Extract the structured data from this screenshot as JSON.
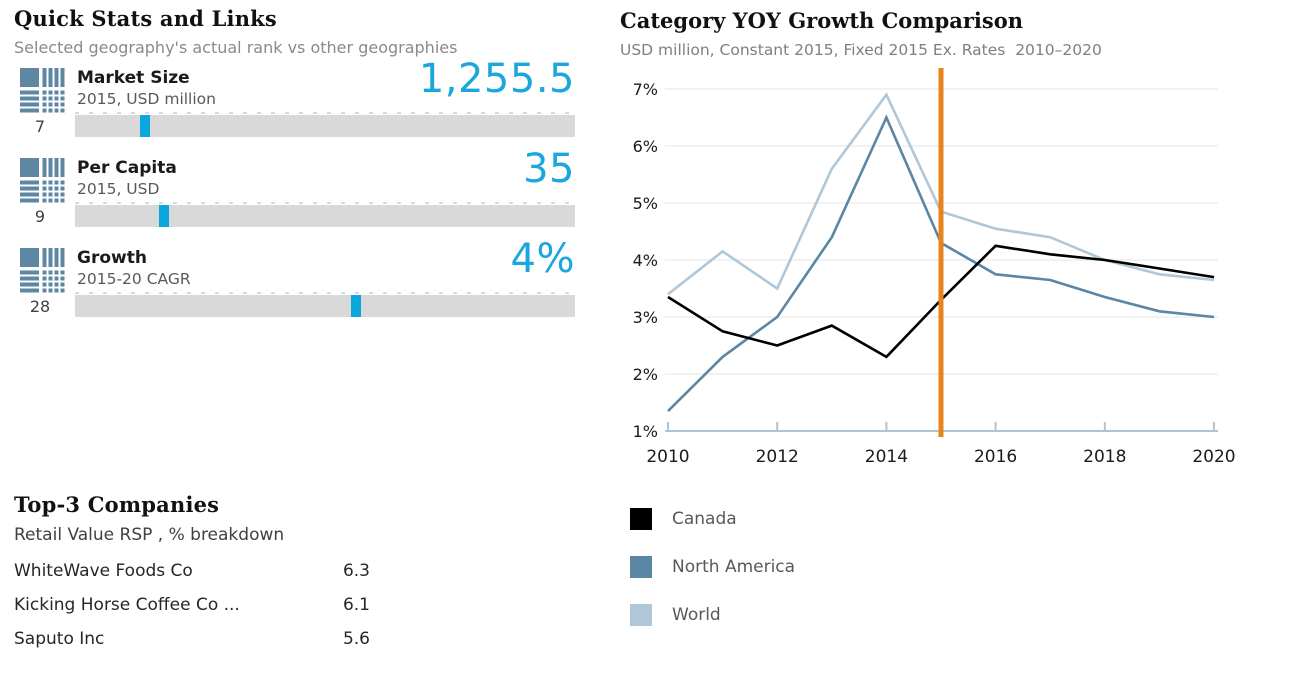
{
  "quick_stats": {
    "title": "Quick Stats and Links",
    "subtitle": "Selected geography's actual rank vs other geographies",
    "stats": [
      {
        "label": "Market Size",
        "sublabel": "2015, USD million",
        "value": "1,255.5",
        "rank": "7",
        "marker_pct": 13.9
      },
      {
        "label": "Per Capita",
        "sublabel": "2015, USD",
        "value": "35",
        "rank": "9",
        "marker_pct": 17.9
      },
      {
        "label": "Growth",
        "sublabel": "2015-20 CAGR",
        "value": "4%",
        "rank": "28",
        "marker_pct": 56.3
      }
    ]
  },
  "top_companies": {
    "title": "Top-3 Companies",
    "subtitle": "Retail Value RSP , % breakdown",
    "rows": [
      {
        "name": "WhiteWave Foods Co",
        "value": "6.3"
      },
      {
        "name": "Kicking Horse Coffee Co ...",
        "value": "6.1"
      },
      {
        "name": "Saputo Inc",
        "value": "5.6"
      }
    ]
  },
  "chart": {
    "title": "Category YOY Growth Comparison",
    "subtitle": "USD million, Constant 2015, Fixed 2015 Ex. Rates  2010–2020"
  },
  "chart_data": {
    "type": "line",
    "title": "Category YOY Growth Comparison",
    "subtitle": "USD million, Constant 2015, Fixed 2015 Ex. Rates 2010–2020",
    "x": [
      2010,
      2011,
      2012,
      2013,
      2014,
      2015,
      2016,
      2017,
      2018,
      2019,
      2020
    ],
    "series": [
      {
        "name": "Canada",
        "color": "#000000",
        "values": [
          3.35,
          2.75,
          2.5,
          2.85,
          2.3,
          3.3,
          4.25,
          4.1,
          4.0,
          3.85,
          3.7
        ]
      },
      {
        "name": "North America",
        "color": "#5B86A4",
        "values": [
          1.35,
          2.3,
          3.0,
          4.4,
          6.5,
          4.3,
          3.75,
          3.65,
          3.35,
          3.1,
          3.0
        ]
      },
      {
        "name": "World",
        "color": "#B0C7D8",
        "values": [
          3.4,
          4.15,
          3.5,
          5.6,
          6.9,
          4.85,
          4.55,
          4.4,
          4.0,
          3.75,
          3.65
        ]
      }
    ],
    "ylim": [
      1,
      7
    ],
    "ytick_values": [
      1,
      2,
      3,
      4,
      5,
      6,
      7
    ],
    "ytick_suffix": "%",
    "xticks": [
      2010,
      2012,
      2014,
      2016,
      2018,
      2020
    ],
    "highlight_x": 2015,
    "highlight_color": "#E8841E",
    "grid": true,
    "legend_position": "bottom-left",
    "axis_color": "#AEC3D3",
    "grid_color": "#EDEDED"
  },
  "colors": {
    "accent_cyan": "#1CA7DC",
    "marker_cyan": "#0BA7DC",
    "icon_blue": "#5E87A3",
    "bar_gray": "#D9D9D9"
  }
}
